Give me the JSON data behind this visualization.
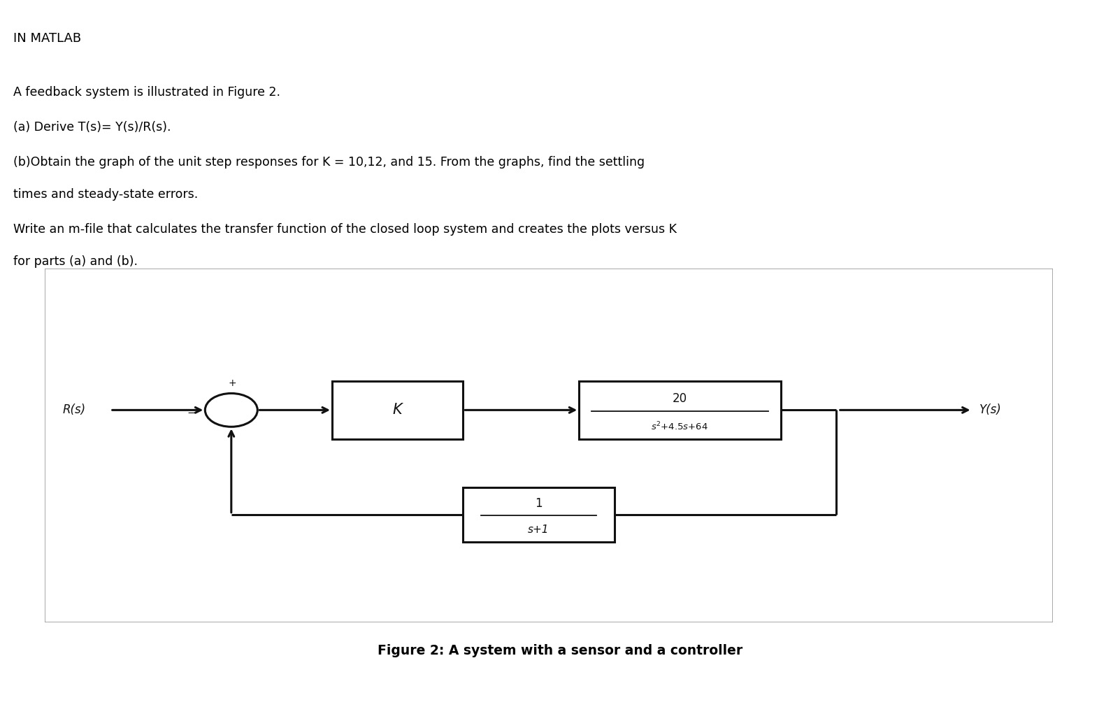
{
  "bg_color": "#ffffff",
  "text_color": "#000000",
  "title_text": "IN MATLAB",
  "line1": "A feedback system is illustrated in Figure 2.",
  "line2": "(a) Derive T(s)= Y(s)/R(s).",
  "line3": "(b)Obtain the graph of the unit step responses for K = 10,12, and 15. From the graphs, find the settling",
  "line4": "times and steady-state errors.",
  "line5": "Write an m-file that calculates the transfer function of the closed loop system and creates the plots versus K",
  "line6": "for parts (a) and (b).",
  "fig_caption": "Figure 2: A system with a sensor and a controller",
  "block_line_color": "#111111",
  "block_fill": "#ffffff",
  "diagram_bg": "#ffffff",
  "diagram_border": "#999999"
}
